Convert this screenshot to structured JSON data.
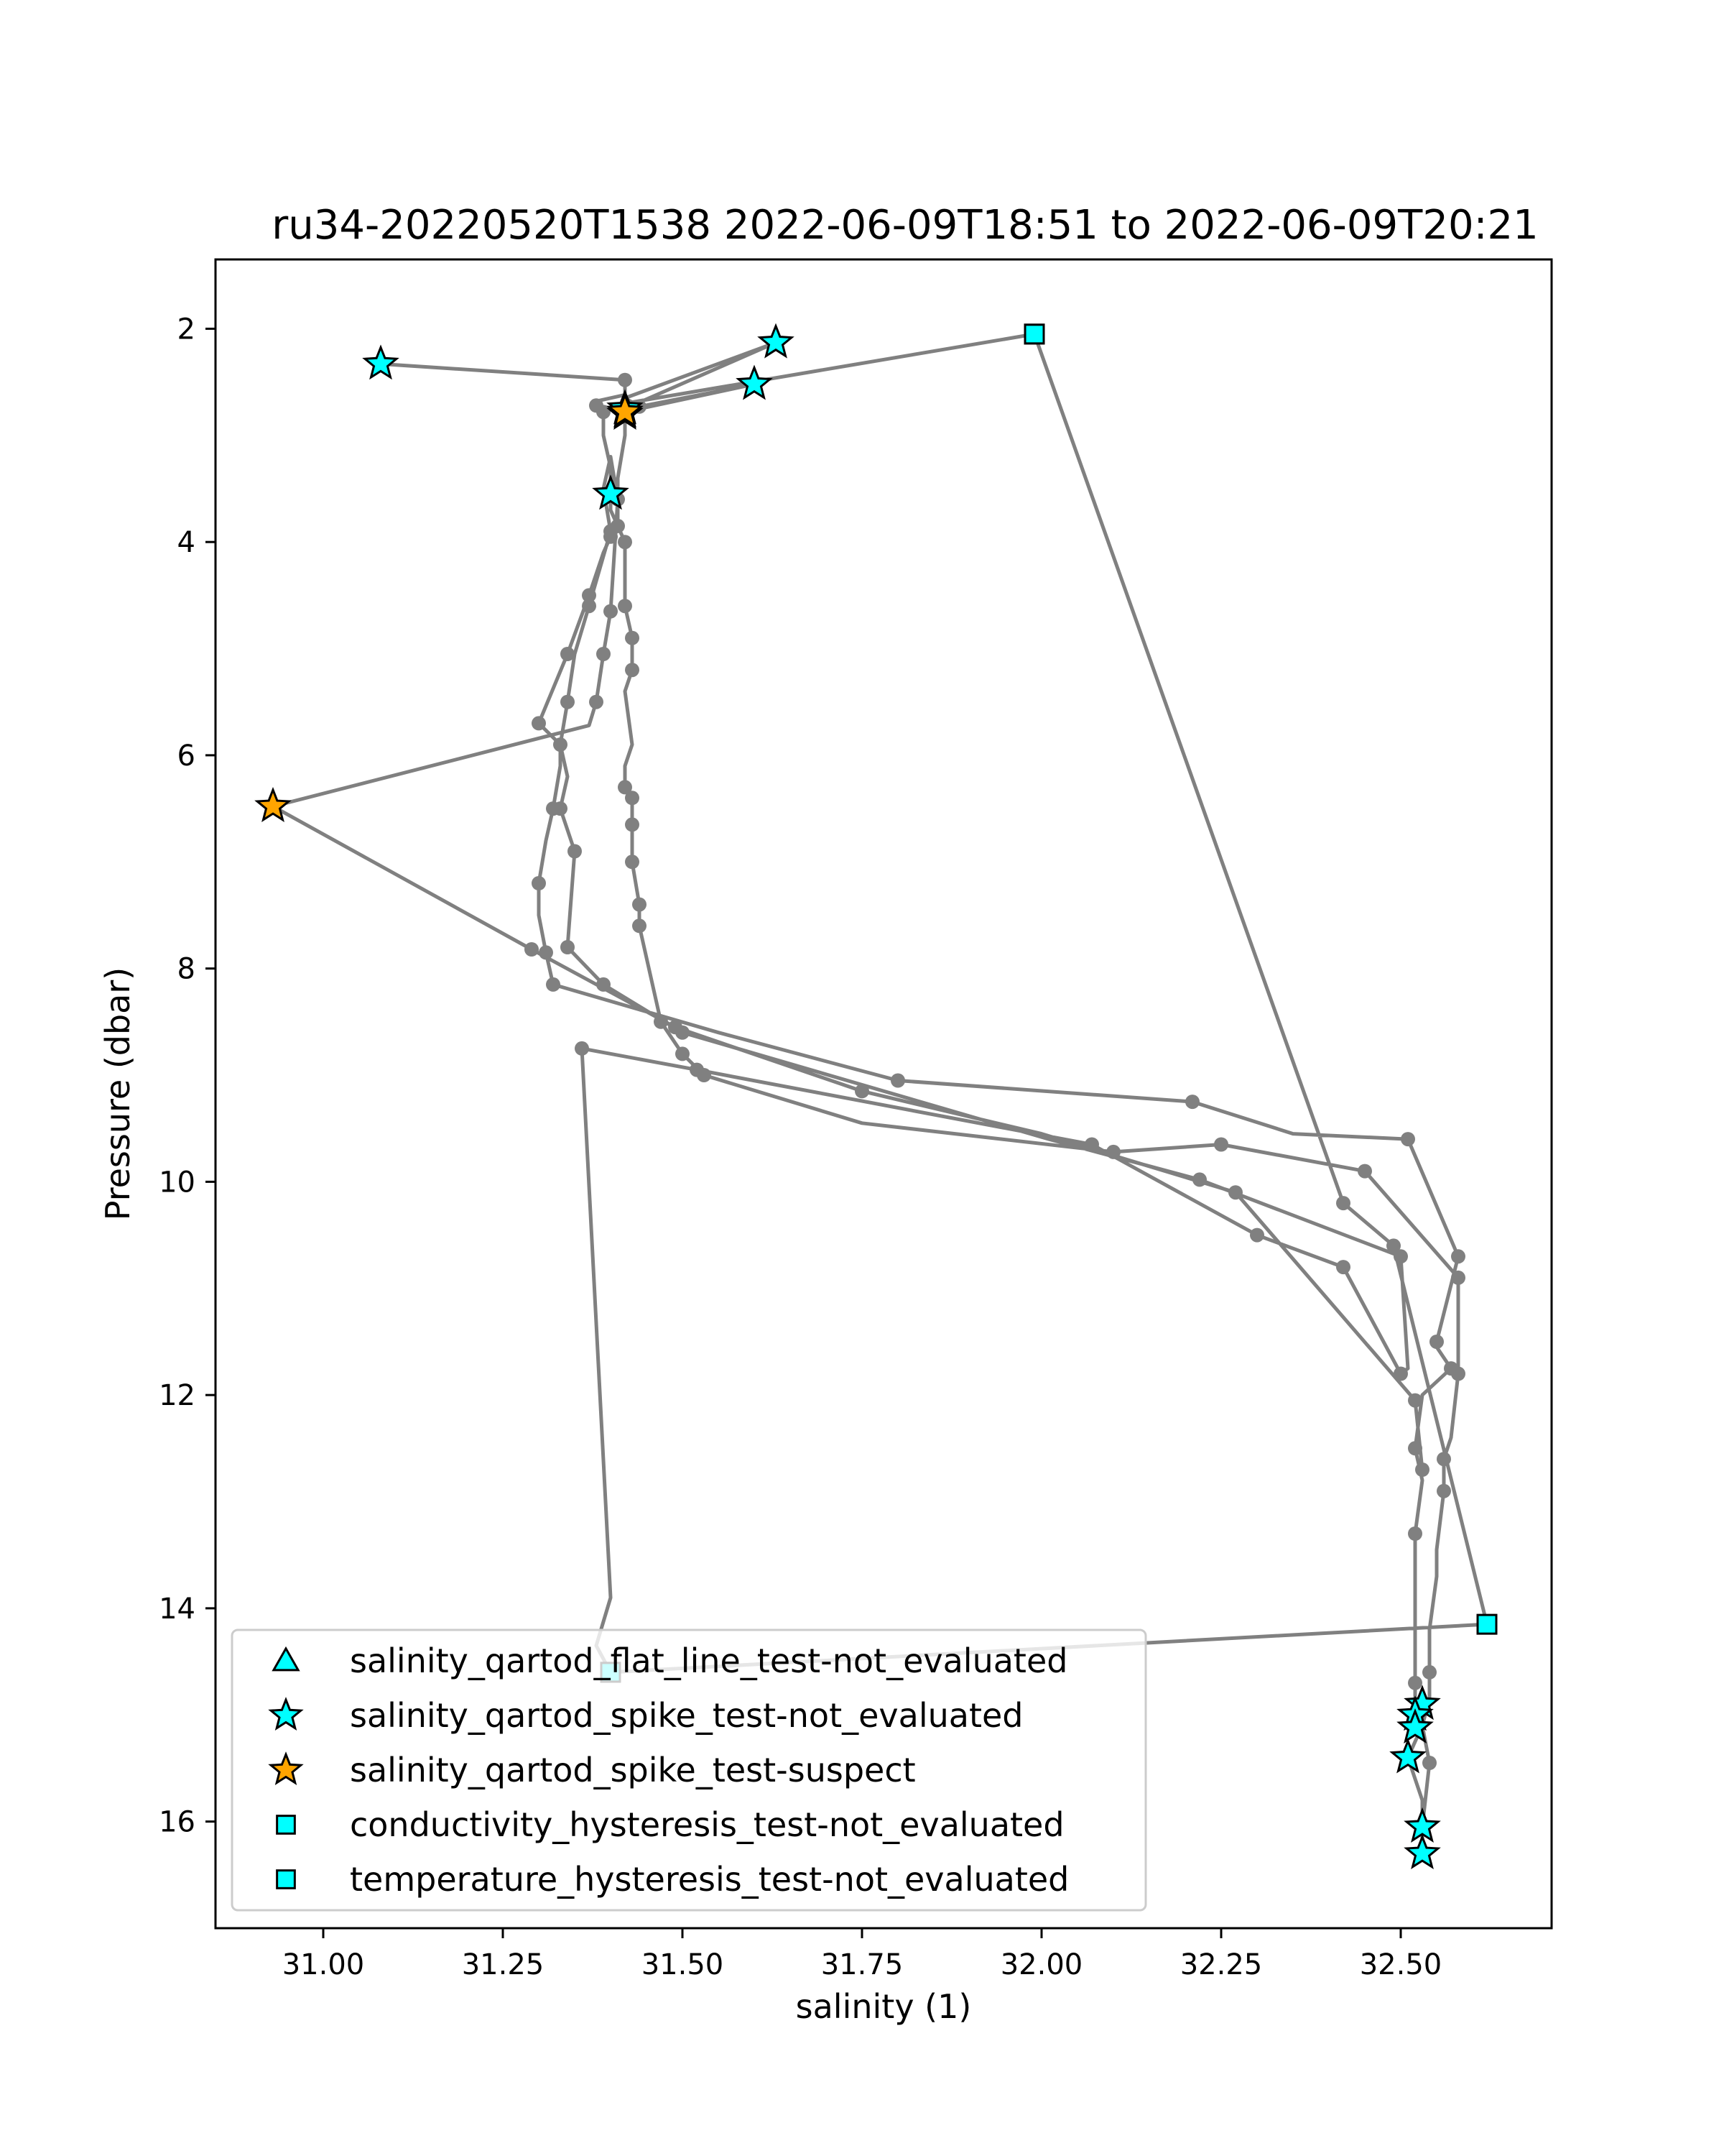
{
  "chart_data": {
    "type": "scatter",
    "title": "ru34-20220520T1538 2022-06-09T18:51 to 2022-06-09T20:21",
    "xlabel": "salinity (1)",
    "ylabel": "Pressure (dbar)",
    "xlim": [
      30.85,
      32.71
    ],
    "ylim": [
      17.0,
      1.35
    ],
    "y_inverted": true,
    "grid": false,
    "xticks": [
      31.0,
      31.25,
      31.5,
      31.75,
      32.0,
      32.25,
      32.5
    ],
    "xtick_labels": [
      "31.00",
      "31.25",
      "31.50",
      "31.75",
      "32.00",
      "32.25",
      "32.50"
    ],
    "yticks": [
      2,
      4,
      6,
      8,
      10,
      12,
      14,
      16
    ],
    "ytick_labels": [
      "2",
      "4",
      "6",
      "8",
      "10",
      "12",
      "14",
      "16"
    ],
    "legend_position": "lower-left",
    "profile_line": {
      "color": "#808080",
      "points": [
        [
          31.08,
          2.33
        ],
        [
          31.42,
          2.48
        ],
        [
          31.42,
          2.62
        ],
        [
          31.38,
          2.68
        ],
        [
          31.38,
          2.72
        ],
        [
          31.39,
          2.78
        ],
        [
          31.39,
          3.0
        ],
        [
          31.4,
          3.3
        ],
        [
          31.4,
          3.55
        ],
        [
          31.4,
          3.7
        ],
        [
          31.41,
          3.85
        ],
        [
          31.4,
          3.95
        ],
        [
          31.39,
          4.1
        ],
        [
          31.37,
          4.5
        ],
        [
          31.34,
          5.05
        ],
        [
          31.3,
          5.7
        ],
        [
          31.33,
          5.9
        ],
        [
          31.33,
          6.1
        ],
        [
          31.32,
          6.5
        ],
        [
          31.31,
          6.8
        ],
        [
          31.3,
          7.2
        ],
        [
          31.3,
          7.5
        ],
        [
          31.31,
          7.85
        ],
        [
          31.32,
          8.15
        ],
        [
          31.55,
          8.6
        ],
        [
          31.8,
          9.05
        ],
        [
          32.21,
          9.25
        ],
        [
          32.35,
          9.55
        ],
        [
          32.51,
          9.6
        ],
        [
          32.58,
          10.7
        ],
        [
          32.55,
          11.5
        ],
        [
          32.55,
          11.55
        ],
        [
          32.57,
          11.75
        ],
        [
          32.53,
          12.0
        ],
        [
          32.52,
          12.5
        ],
        [
          32.53,
          12.8
        ],
        [
          32.52,
          13.3
        ],
        [
          32.52,
          13.7
        ],
        [
          32.52,
          13.75
        ],
        [
          32.52,
          14.1
        ],
        [
          32.52,
          14.7
        ],
        [
          32.52,
          15.0
        ],
        [
          32.53,
          15.1
        ],
        [
          32.51,
          15.4
        ],
        [
          32.52,
          15.6
        ],
        [
          32.53,
          15.8
        ],
        [
          32.53,
          16.0
        ],
        [
          32.53,
          16.2
        ],
        [
          32.53,
          16.3
        ],
        [
          32.53,
          16.05
        ],
        [
          32.54,
          15.45
        ],
        [
          32.53,
          15.1
        ],
        [
          32.54,
          14.85
        ],
        [
          32.54,
          14.6
        ],
        [
          32.54,
          14.2
        ],
        [
          32.55,
          13.7
        ],
        [
          32.55,
          13.45
        ],
        [
          32.56,
          12.9
        ],
        [
          32.56,
          12.6
        ],
        [
          32.57,
          12.4
        ],
        [
          32.58,
          11.8
        ],
        [
          32.58,
          10.9
        ],
        [
          32.45,
          9.9
        ],
        [
          32.25,
          9.65
        ],
        [
          32.1,
          9.72
        ],
        [
          31.75,
          9.45
        ],
        [
          31.53,
          9.0
        ],
        [
          31.5,
          8.8
        ],
        [
          31.47,
          8.5
        ],
        [
          31.44,
          7.6
        ],
        [
          31.44,
          7.4
        ],
        [
          31.43,
          7.0
        ],
        [
          31.43,
          6.65
        ],
        [
          31.43,
          6.4
        ],
        [
          31.42,
          6.3
        ],
        [
          31.42,
          6.1
        ],
        [
          31.43,
          5.9
        ],
        [
          31.42,
          5.4
        ],
        [
          31.43,
          5.2
        ],
        [
          31.43,
          4.9
        ],
        [
          31.42,
          4.6
        ],
        [
          31.42,
          4.3
        ],
        [
          31.42,
          4.0
        ],
        [
          31.41,
          3.85
        ],
        [
          31.41,
          3.7
        ],
        [
          31.41,
          3.4
        ],
        [
          31.42,
          3.0
        ],
        [
          31.42,
          2.75
        ],
        [
          31.63,
          2.13
        ],
        [
          31.42,
          2.65
        ],
        [
          31.44,
          2.73
        ],
        [
          31.6,
          2.52
        ],
        [
          31.42,
          2.78
        ],
        [
          31.42,
          2.7
        ],
        [
          31.99,
          2.05
        ],
        [
          32.42,
          10.2
        ],
        [
          32.49,
          10.6
        ],
        [
          32.62,
          14.15
        ],
        [
          31.4,
          14.6
        ],
        [
          31.38,
          14.35
        ],
        [
          31.4,
          13.9
        ],
        [
          31.36,
          8.75
        ],
        [
          31.52,
          8.95
        ],
        [
          32.07,
          9.65
        ],
        [
          32.3,
          10.5
        ],
        [
          32.42,
          10.8
        ],
        [
          32.5,
          11.8
        ],
        [
          32.51,
          11.75
        ],
        [
          32.5,
          10.7
        ],
        [
          32.22,
          9.98
        ],
        [
          32.01,
          9.6
        ],
        [
          31.5,
          8.6
        ],
        [
          31.39,
          8.15
        ],
        [
          31.34,
          7.8
        ],
        [
          31.35,
          6.9
        ],
        [
          31.33,
          6.5
        ],
        [
          31.34,
          6.2
        ],
        [
          31.33,
          5.9
        ],
        [
          31.34,
          5.5
        ],
        [
          31.35,
          5.05
        ],
        [
          31.37,
          4.6
        ],
        [
          31.4,
          3.9
        ],
        [
          31.39,
          3.5
        ],
        [
          31.4,
          3.2
        ],
        [
          31.41,
          3.6
        ],
        [
          31.4,
          4.65
        ],
        [
          31.39,
          5.05
        ],
        [
          31.38,
          5.5
        ],
        [
          31.37,
          5.72
        ],
        [
          30.93,
          6.48
        ],
        [
          31.29,
          7.82
        ],
        [
          31.49,
          8.55
        ],
        [
          31.75,
          9.15
        ],
        [
          32.0,
          9.55
        ],
        [
          32.27,
          10.1
        ],
        [
          32.52,
          12.05
        ],
        [
          32.53,
          12.7
        ]
      ]
    },
    "point_markers": {
      "color": "#808080",
      "points": [
        [
          31.42,
          2.48
        ],
        [
          31.38,
          2.72
        ],
        [
          31.39,
          2.78
        ],
        [
          31.4,
          3.55
        ],
        [
          31.41,
          3.85
        ],
        [
          31.4,
          3.95
        ],
        [
          31.37,
          4.5
        ],
        [
          31.34,
          5.05
        ],
        [
          31.3,
          5.7
        ],
        [
          31.33,
          5.9
        ],
        [
          31.32,
          6.5
        ],
        [
          31.3,
          7.2
        ],
        [
          31.31,
          7.85
        ],
        [
          31.32,
          8.15
        ],
        [
          31.8,
          9.05
        ],
        [
          32.21,
          9.25
        ],
        [
          32.51,
          9.6
        ],
        [
          32.58,
          10.7
        ],
        [
          32.55,
          11.5
        ],
        [
          32.57,
          11.75
        ],
        [
          32.52,
          12.5
        ],
        [
          32.52,
          13.3
        ],
        [
          32.52,
          14.7
        ],
        [
          32.54,
          15.45
        ],
        [
          32.54,
          14.6
        ],
        [
          32.56,
          12.9
        ],
        [
          32.56,
          12.6
        ],
        [
          32.58,
          11.8
        ],
        [
          32.58,
          10.9
        ],
        [
          32.45,
          9.9
        ],
        [
          32.25,
          9.65
        ],
        [
          32.1,
          9.72
        ],
        [
          31.53,
          9.0
        ],
        [
          31.5,
          8.8
        ],
        [
          31.47,
          8.5
        ],
        [
          31.44,
          7.6
        ],
        [
          31.44,
          7.4
        ],
        [
          31.43,
          7.0
        ],
        [
          31.43,
          6.65
        ],
        [
          31.43,
          6.4
        ],
        [
          31.42,
          6.3
        ],
        [
          31.43,
          5.2
        ],
        [
          31.43,
          4.9
        ],
        [
          31.42,
          4.6
        ],
        [
          31.42,
          4.0
        ],
        [
          31.44,
          2.73
        ],
        [
          32.42,
          10.2
        ],
        [
          32.49,
          10.6
        ],
        [
          31.36,
          8.75
        ],
        [
          31.52,
          8.95
        ],
        [
          32.07,
          9.65
        ],
        [
          32.3,
          10.5
        ],
        [
          32.42,
          10.8
        ],
        [
          32.5,
          11.8
        ],
        [
          32.5,
          10.7
        ],
        [
          32.22,
          9.98
        ],
        [
          31.5,
          8.6
        ],
        [
          31.39,
          8.15
        ],
        [
          31.34,
          7.8
        ],
        [
          31.35,
          6.9
        ],
        [
          31.33,
          6.5
        ],
        [
          31.34,
          5.5
        ],
        [
          31.37,
          4.6
        ],
        [
          31.4,
          3.9
        ],
        [
          31.39,
          5.05
        ],
        [
          31.38,
          5.5
        ],
        [
          31.29,
          7.82
        ],
        [
          31.49,
          8.55
        ],
        [
          31.75,
          9.15
        ],
        [
          32.27,
          10.1
        ],
        [
          32.52,
          12.05
        ],
        [
          32.53,
          12.7
        ],
        [
          31.4,
          4.65
        ],
        [
          31.41,
          3.6
        ]
      ]
    },
    "series": [
      {
        "name": "salinity_qartod_flat_line_test-not_evaluated",
        "marker": "triangle",
        "color": "#00ffff",
        "points": []
      },
      {
        "name": "salinity_qartod_spike_test-not_evaluated",
        "marker": "star",
        "color": "#00ffff",
        "points": [
          [
            31.08,
            2.33
          ],
          [
            31.63,
            2.13
          ],
          [
            31.6,
            2.52
          ],
          [
            31.42,
            2.75
          ],
          [
            31.42,
            2.8
          ],
          [
            31.4,
            3.55
          ],
          [
            32.53,
            14.9
          ],
          [
            32.52,
            15.0
          ],
          [
            32.52,
            15.12
          ],
          [
            32.51,
            15.4
          ],
          [
            32.53,
            16.05
          ],
          [
            32.53,
            16.3
          ]
        ]
      },
      {
        "name": "salinity_qartod_spike_test-suspect",
        "marker": "star",
        "color": "#ffa500",
        "points": [
          [
            30.93,
            6.48
          ],
          [
            31.42,
            2.78
          ]
        ]
      },
      {
        "name": "conductivity_hysteresis_test-not_evaluated",
        "marker": "square",
        "color": "#00ffff",
        "points": [
          [
            31.99,
            2.05
          ],
          [
            32.62,
            14.15
          ],
          [
            31.4,
            14.6
          ]
        ]
      },
      {
        "name": "temperature_hysteresis_test-not_evaluated",
        "marker": "square",
        "color": "#00ffff",
        "points": [
          [
            31.99,
            2.05
          ],
          [
            31.4,
            14.6
          ]
        ]
      }
    ]
  }
}
